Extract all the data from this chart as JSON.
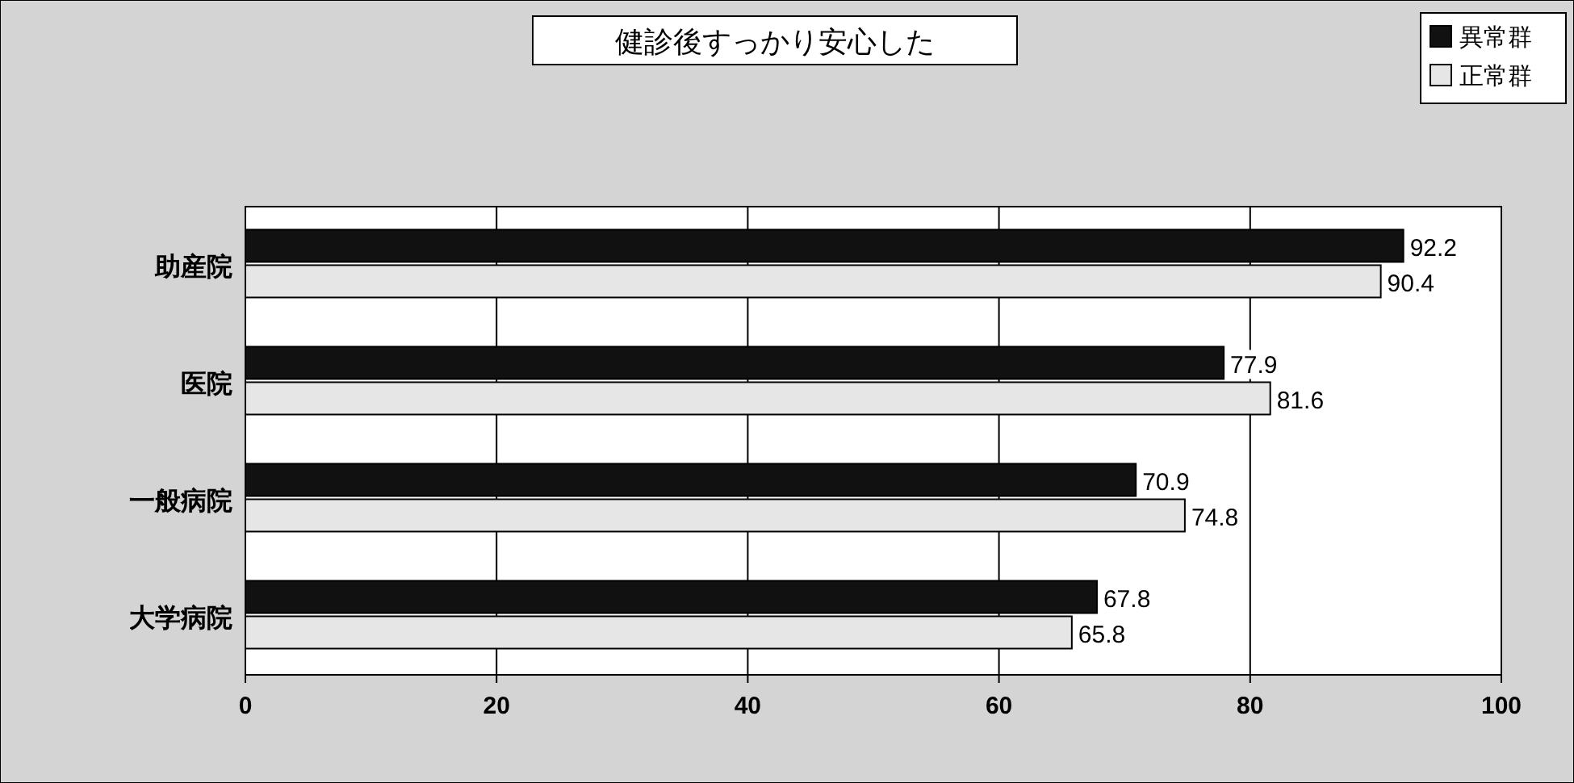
{
  "chart_data": {
    "type": "bar",
    "orientation": "horizontal",
    "title": "健診後すっかり安心した",
    "categories": [
      "助産院",
      "医院",
      "一般病院",
      "大学病院"
    ],
    "series": [
      {
        "name": "異常群",
        "color": "#111111",
        "values": [
          92.2,
          77.9,
          70.9,
          67.8
        ]
      },
      {
        "name": "正常群",
        "color": "#e6e6e6",
        "values": [
          90.4,
          81.6,
          74.8,
          65.8
        ]
      }
    ],
    "xlim": [
      0,
      100
    ],
    "xticks": [
      0,
      20,
      40,
      60,
      80,
      100
    ],
    "grid": "x",
    "legend": "top right",
    "data_labels": true
  }
}
